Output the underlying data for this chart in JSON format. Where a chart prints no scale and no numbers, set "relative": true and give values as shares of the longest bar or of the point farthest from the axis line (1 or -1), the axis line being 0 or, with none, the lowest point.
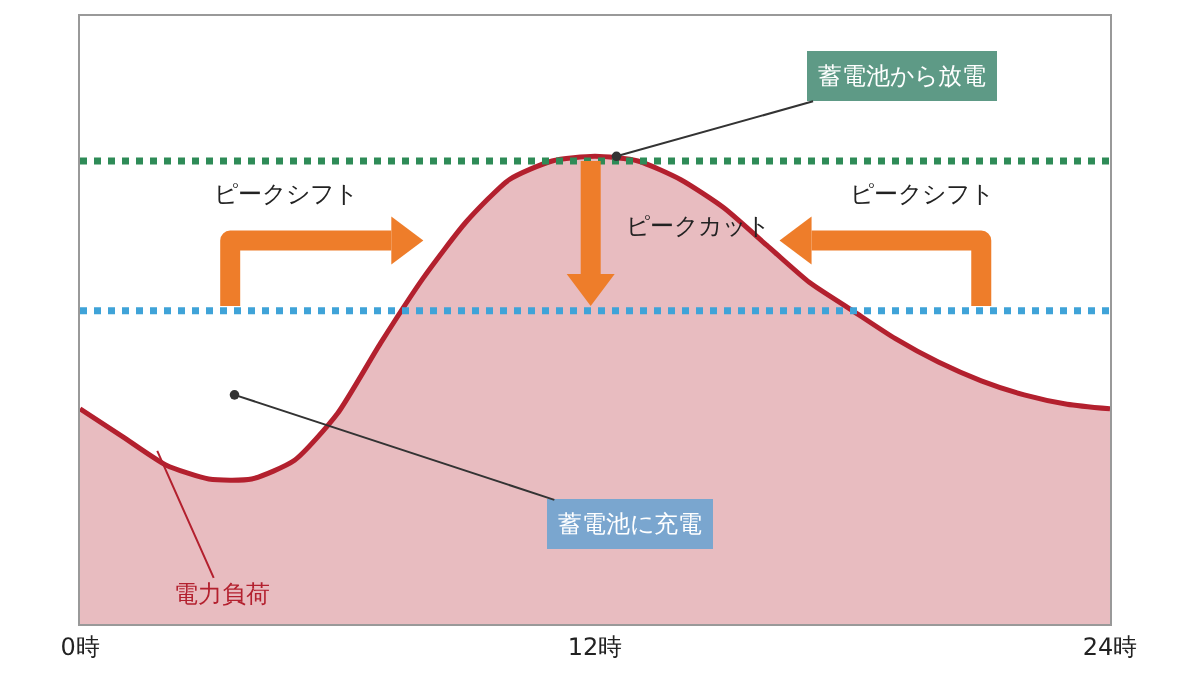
{
  "chart_data": {
    "type": "area",
    "relative": true,
    "x": [
      0,
      1,
      2,
      3,
      4,
      5,
      6,
      7,
      8,
      9,
      10,
      11,
      12,
      13,
      14,
      15,
      16,
      17,
      18,
      19,
      20,
      21,
      22,
      23,
      24
    ],
    "series": [
      {
        "name": "電力負荷",
        "color": "#b3202e",
        "values": [
          0.46,
          0.4,
          0.34,
          0.31,
          0.31,
          0.35,
          0.45,
          0.6,
          0.74,
          0.86,
          0.95,
          0.99,
          1,
          0.99,
          0.95,
          0.89,
          0.81,
          0.73,
          0.67,
          0.61,
          0.56,
          0.52,
          0.49,
          0.47,
          0.46
        ]
      }
    ],
    "xlim": [
      0,
      24
    ],
    "xticks": [
      {
        "value": 0,
        "label": "0時"
      },
      {
        "value": 12,
        "label": "12時"
      },
      {
        "value": 24,
        "label": "24時"
      }
    ],
    "tick_labels": "x",
    "grid": false,
    "ref_lines": [
      {
        "axis": "y",
        "value": 0.99,
        "color": "#2e8b57",
        "line_style": "dotted"
      },
      {
        "axis": "y",
        "value": 0.67,
        "color": "#3fa3d8",
        "line_style": "dotted"
      }
    ],
    "annotations": [
      {
        "text": "蓄電池から放電",
        "x": 12.5,
        "y": 1
      },
      {
        "text": "蓄電池に充電",
        "x": 3.6,
        "y": 0.49
      },
      "ピークシフト",
      "ピークカット",
      "ピークシフト"
    ]
  }
}
